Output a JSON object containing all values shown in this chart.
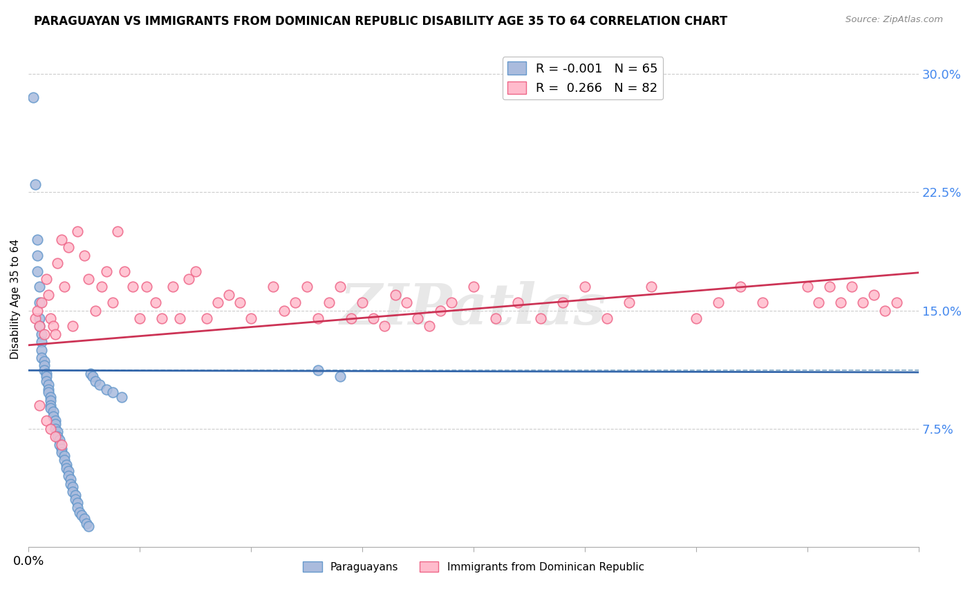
{
  "title": "PARAGUAYAN VS IMMIGRANTS FROM DOMINICAN REPUBLIC DISABILITY AGE 35 TO 64 CORRELATION CHART",
  "source": "Source: ZipAtlas.com",
  "ylabel": "Disability Age 35 to 64",
  "xlim": [
    0.0,
    0.4
  ],
  "ylim": [
    0.0,
    0.315
  ],
  "xtick_positions": [
    0.0,
    0.05,
    0.1,
    0.15,
    0.2,
    0.25,
    0.3,
    0.35,
    0.4
  ],
  "xtick_labels_show": {
    "0.0": "0.0%"
  },
  "yticks_right": [
    0.075,
    0.15,
    0.225,
    0.3
  ],
  "ytick_labels_right": [
    "7.5%",
    "15.0%",
    "22.5%",
    "30.0%"
  ],
  "grid_color": "#cccccc",
  "background_color": "#ffffff",
  "blue_color": "#6699cc",
  "blue_fill": "#aabbdd",
  "pink_color": "#ee6688",
  "pink_fill": "#ffbbcc",
  "legend_R_blue": "-0.001",
  "legend_N_blue": "65",
  "legend_R_pink": "0.266",
  "legend_N_pink": "82",
  "blue_regression_slope": -0.003,
  "blue_regression_intercept": 0.112,
  "pink_regression_slope": 0.115,
  "pink_regression_intercept": 0.128,
  "blue_scatter_x": [
    0.002,
    0.003,
    0.004,
    0.004,
    0.004,
    0.005,
    0.005,
    0.005,
    0.005,
    0.006,
    0.006,
    0.006,
    0.006,
    0.007,
    0.007,
    0.007,
    0.008,
    0.008,
    0.008,
    0.009,
    0.009,
    0.009,
    0.01,
    0.01,
    0.01,
    0.01,
    0.011,
    0.011,
    0.012,
    0.012,
    0.012,
    0.013,
    0.013,
    0.014,
    0.014,
    0.015,
    0.015,
    0.016,
    0.016,
    0.017,
    0.017,
    0.018,
    0.018,
    0.019,
    0.019,
    0.02,
    0.02,
    0.021,
    0.021,
    0.022,
    0.022,
    0.023,
    0.024,
    0.025,
    0.026,
    0.027,
    0.028,
    0.029,
    0.03,
    0.032,
    0.035,
    0.038,
    0.042,
    0.13,
    0.14
  ],
  "blue_scatter_y": [
    0.285,
    0.23,
    0.195,
    0.185,
    0.175,
    0.165,
    0.155,
    0.145,
    0.14,
    0.135,
    0.13,
    0.125,
    0.12,
    0.118,
    0.115,
    0.112,
    0.11,
    0.108,
    0.105,
    0.103,
    0.1,
    0.098,
    0.095,
    0.093,
    0.09,
    0.088,
    0.086,
    0.083,
    0.08,
    0.078,
    0.075,
    0.073,
    0.07,
    0.068,
    0.065,
    0.062,
    0.06,
    0.058,
    0.055,
    0.052,
    0.05,
    0.048,
    0.045,
    0.043,
    0.04,
    0.038,
    0.035,
    0.033,
    0.03,
    0.028,
    0.025,
    0.022,
    0.02,
    0.018,
    0.015,
    0.013,
    0.11,
    0.108,
    0.105,
    0.103,
    0.1,
    0.098,
    0.095,
    0.112,
    0.108
  ],
  "pink_scatter_x": [
    0.003,
    0.004,
    0.005,
    0.006,
    0.007,
    0.008,
    0.009,
    0.01,
    0.011,
    0.012,
    0.013,
    0.015,
    0.016,
    0.018,
    0.02,
    0.022,
    0.025,
    0.027,
    0.03,
    0.033,
    0.035,
    0.038,
    0.04,
    0.043,
    0.047,
    0.05,
    0.053,
    0.057,
    0.06,
    0.065,
    0.068,
    0.072,
    0.075,
    0.08,
    0.085,
    0.09,
    0.095,
    0.1,
    0.11,
    0.115,
    0.12,
    0.125,
    0.13,
    0.135,
    0.14,
    0.145,
    0.15,
    0.155,
    0.16,
    0.165,
    0.17,
    0.175,
    0.18,
    0.185,
    0.19,
    0.2,
    0.21,
    0.22,
    0.23,
    0.24,
    0.25,
    0.26,
    0.27,
    0.28,
    0.3,
    0.31,
    0.32,
    0.33,
    0.35,
    0.355,
    0.36,
    0.365,
    0.37,
    0.375,
    0.38,
    0.385,
    0.39,
    0.005,
    0.008,
    0.01,
    0.012,
    0.015
  ],
  "pink_scatter_y": [
    0.145,
    0.15,
    0.14,
    0.155,
    0.135,
    0.17,
    0.16,
    0.145,
    0.14,
    0.135,
    0.18,
    0.195,
    0.165,
    0.19,
    0.14,
    0.2,
    0.185,
    0.17,
    0.15,
    0.165,
    0.175,
    0.155,
    0.2,
    0.175,
    0.165,
    0.145,
    0.165,
    0.155,
    0.145,
    0.165,
    0.145,
    0.17,
    0.175,
    0.145,
    0.155,
    0.16,
    0.155,
    0.145,
    0.165,
    0.15,
    0.155,
    0.165,
    0.145,
    0.155,
    0.165,
    0.145,
    0.155,
    0.145,
    0.14,
    0.16,
    0.155,
    0.145,
    0.14,
    0.15,
    0.155,
    0.165,
    0.145,
    0.155,
    0.145,
    0.155,
    0.165,
    0.145,
    0.155,
    0.165,
    0.145,
    0.155,
    0.165,
    0.155,
    0.165,
    0.155,
    0.165,
    0.155,
    0.165,
    0.155,
    0.16,
    0.15,
    0.155,
    0.09,
    0.08,
    0.075,
    0.07,
    0.065
  ],
  "blue_line_color": "#3366aa",
  "blue_dashed_color": "#6699bb",
  "blue_line_dashed_y": 0.112,
  "pink_line_color": "#cc3355",
  "watermark": "ZIPatlas",
  "title_fontsize": 12,
  "axis_label_color": "#4488ee",
  "axis_label_fontsize": 13,
  "scatter_size": 110,
  "legend_fontsize": 13
}
